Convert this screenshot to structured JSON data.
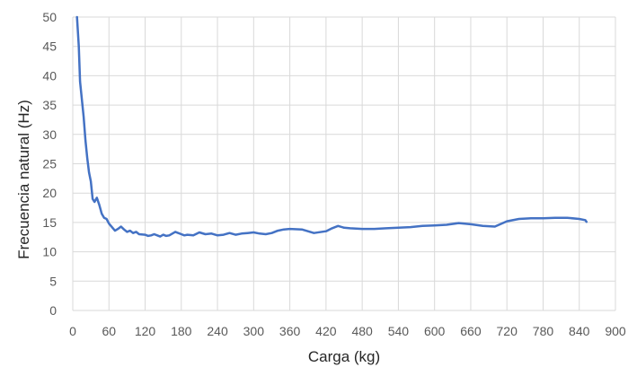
{
  "chart_data": {
    "type": "line",
    "title": "",
    "xlabel": "Carga (kg)",
    "ylabel": "Frecuencia natural (Hz)",
    "xlim": [
      0,
      900
    ],
    "ylim": [
      0,
      50
    ],
    "xticks": [
      0,
      60,
      120,
      180,
      240,
      300,
      360,
      420,
      480,
      540,
      600,
      660,
      720,
      780,
      840,
      900
    ],
    "yticks": [
      0,
      5,
      10,
      15,
      20,
      25,
      30,
      35,
      40,
      45,
      50
    ],
    "grid": true,
    "legend": "none",
    "line_color": "#4472C4",
    "series": [
      {
        "x": [
          7,
          10,
          12,
          15,
          18,
          21,
          24,
          27,
          30,
          33,
          36,
          40,
          44,
          48,
          52,
          56,
          60,
          65,
          70,
          75,
          80,
          85,
          90,
          95,
          100,
          105,
          110,
          120,
          125,
          130,
          135,
          140,
          145,
          150,
          155,
          160,
          170,
          180,
          185,
          190,
          200,
          210,
          220,
          230,
          240,
          250,
          260,
          270,
          280,
          290,
          300,
          310,
          320,
          330,
          340,
          350,
          360,
          380,
          400,
          420,
          430,
          440,
          450,
          460,
          480,
          500,
          520,
          540,
          560,
          580,
          600,
          620,
          640,
          660,
          680,
          700,
          720,
          740,
          760,
          780,
          800,
          820,
          840,
          850,
          852
        ],
        "y": [
          50,
          45,
          39,
          36,
          33,
          29,
          26,
          23.5,
          22,
          19,
          18.5,
          19.2,
          18,
          16.5,
          15.8,
          15.6,
          14.8,
          14.2,
          13.6,
          13.9,
          14.3,
          13.8,
          13.4,
          13.6,
          13.2,
          13.4,
          13.0,
          12.9,
          12.7,
          12.8,
          13.0,
          12.8,
          12.6,
          12.9,
          12.7,
          12.8,
          13.4,
          13.0,
          12.8,
          12.9,
          12.8,
          13.3,
          13.0,
          13.1,
          12.8,
          12.9,
          13.2,
          12.9,
          13.1,
          13.2,
          13.3,
          13.1,
          13.0,
          13.2,
          13.6,
          13.8,
          13.9,
          13.8,
          13.2,
          13.5,
          14.0,
          14.4,
          14.1,
          14.0,
          13.9,
          13.9,
          14.0,
          14.1,
          14.2,
          14.4,
          14.5,
          14.6,
          14.9,
          14.7,
          14.4,
          14.3,
          15.2,
          15.6,
          15.7,
          15.7,
          15.8,
          15.8,
          15.6,
          15.4,
          15.1
        ]
      }
    ]
  }
}
